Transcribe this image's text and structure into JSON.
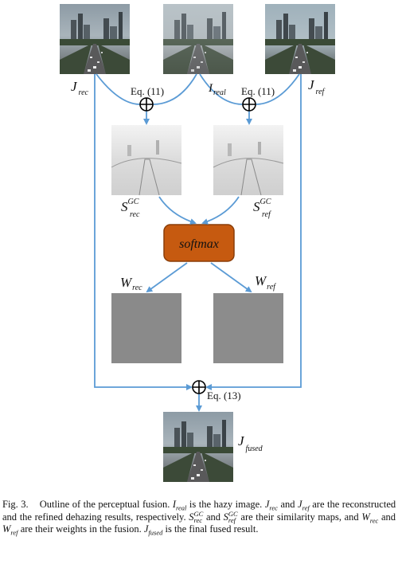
{
  "labels": {
    "j_rec": {
      "main": "J",
      "sub": "rec"
    },
    "i_real": {
      "main": "I",
      "sub": "real"
    },
    "j_ref": {
      "main": "J",
      "sub": "ref"
    },
    "s_rec": {
      "main": "S",
      "sup": "GC",
      "sub": "rec"
    },
    "s_ref": {
      "main": "S",
      "sup": "GC",
      "sub": "ref"
    },
    "w_rec": {
      "main": "W",
      "sub": "rec"
    },
    "w_ref": {
      "main": "W",
      "sub": "ref"
    },
    "j_fused": {
      "main": "J",
      "sub": "fused"
    }
  },
  "equations": {
    "eq11_left": "Eq. (11)",
    "eq11_right": "Eq. (11)",
    "eq13": "Eq. (13)"
  },
  "softmax": {
    "label": "softmax",
    "fill": "#c65a10",
    "stroke": "#8a3d08"
  },
  "arrow_color": "#5b9bd5",
  "caption": {
    "fig": "Fig. 3.",
    "t1": "Outline of the perceptual fusion.",
    "t2": "is the hazy image.",
    "t3": "and",
    "t4": "are the reconstructed and the refined dehazing results, respectively.",
    "t5": "and",
    "t6": "are their similarity maps, and",
    "t7": "and",
    "t8": "are their weights in the fusion.",
    "t9": "is the final fused result."
  }
}
